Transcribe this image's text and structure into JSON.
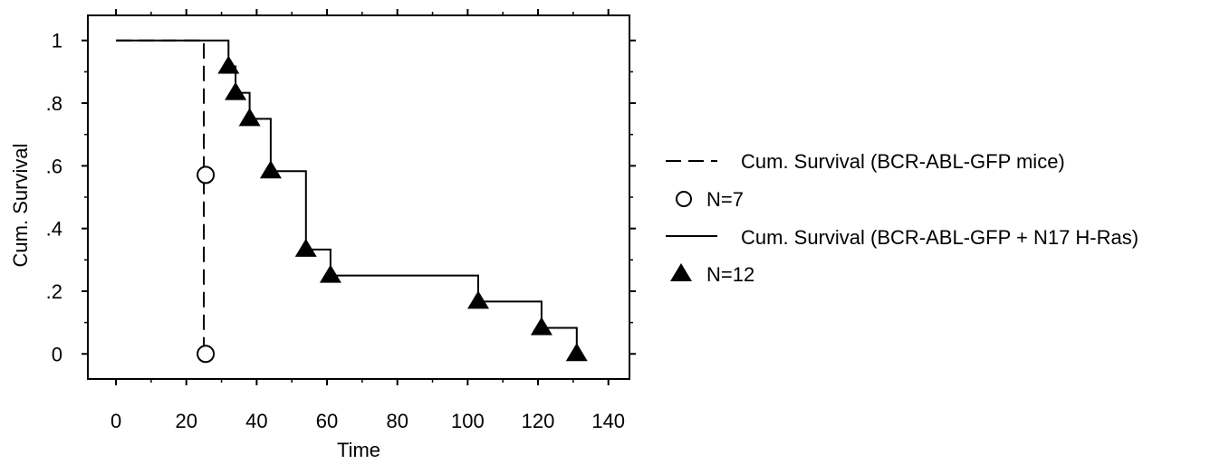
{
  "chart_data": {
    "type": "line",
    "title": "",
    "xlabel": "Time",
    "ylabel": "Cum. Survival",
    "xlim": [
      -8,
      146
    ],
    "ylim": [
      -0.08,
      1.08
    ],
    "grid": false,
    "legend_position": "right",
    "x_ticks": [
      0,
      20,
      40,
      60,
      80,
      100,
      120,
      140
    ],
    "x_tick_labels": [
      "0",
      "20",
      "40",
      "60",
      "80",
      "100",
      "120",
      "140"
    ],
    "y_ticks": [
      0,
      0.2,
      0.4,
      0.6,
      0.8,
      1.0
    ],
    "y_tick_labels": [
      "0",
      ".2",
      ".4",
      ".6",
      ".8",
      "1"
    ],
    "series": [
      {
        "name": "Cum. Survival (BCR-ABL-GFP mice)",
        "style": "dashed",
        "color": "#000000",
        "step_points": [
          [
            0,
            1.0
          ],
          [
            25,
            1.0
          ],
          [
            25,
            0.0
          ]
        ],
        "marker": "circle-open",
        "marker_label": "N=7",
        "markers": [
          [
            25.5,
            0.571
          ],
          [
            25.5,
            0.0
          ]
        ]
      },
      {
        "name": "Cum. Survival (BCR-ABL-GFP + N17 H-Ras)",
        "style": "solid",
        "color": "#000000",
        "step_points": [
          [
            0,
            1.0
          ],
          [
            32,
            1.0
          ],
          [
            32,
            0.917
          ],
          [
            34,
            0.917
          ],
          [
            34,
            0.833
          ],
          [
            38,
            0.833
          ],
          [
            38,
            0.75
          ],
          [
            44,
            0.75
          ],
          [
            44,
            0.583
          ],
          [
            54,
            0.583
          ],
          [
            54,
            0.333
          ],
          [
            61,
            0.333
          ],
          [
            61,
            0.25
          ],
          [
            103,
            0.25
          ],
          [
            103,
            0.167
          ],
          [
            121,
            0.167
          ],
          [
            121,
            0.083
          ],
          [
            131,
            0.083
          ],
          [
            131,
            0.0
          ]
        ],
        "marker": "triangle-filled",
        "marker_label": "N=12",
        "markers": [
          [
            32,
            0.917
          ],
          [
            34,
            0.833
          ],
          [
            38,
            0.75
          ],
          [
            44,
            0.583
          ],
          [
            54,
            0.333
          ],
          [
            61,
            0.25
          ],
          [
            103,
            0.167
          ],
          [
            121,
            0.083
          ],
          [
            131,
            0.0
          ]
        ]
      }
    ]
  }
}
